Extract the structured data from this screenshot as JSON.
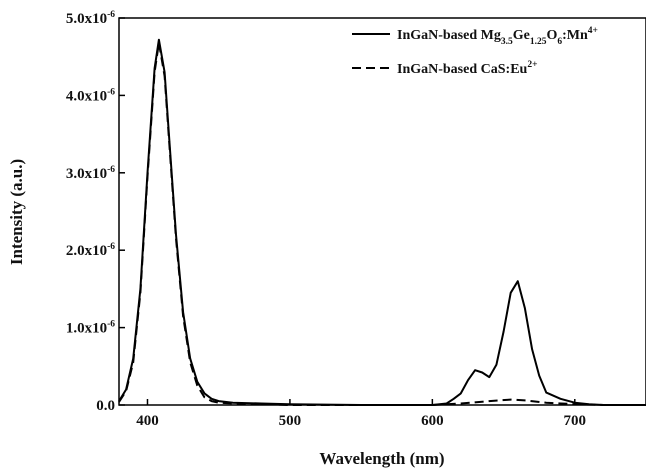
{
  "chart_data": {
    "type": "line",
    "xlabel": "Wavelength (nm)",
    "ylabel": "Intensity (a.u.)",
    "xlim": [
      380,
      750
    ],
    "ylim": [
      0,
      5e-06
    ],
    "x_ticks": [
      400,
      500,
      600,
      700
    ],
    "x_tick_labels": [
      "400",
      "500",
      "600",
      "700"
    ],
    "y_ticks": [
      0,
      1e-06,
      2e-06,
      3e-06,
      4e-06,
      5e-06
    ],
    "y_tick_labels": [
      {
        "base": "0.0",
        "exp": ""
      },
      {
        "base": "1.0x10",
        "exp": "-6"
      },
      {
        "base": "2.0x10",
        "exp": "-6"
      },
      {
        "base": "3.0x10",
        "exp": "-6"
      },
      {
        "base": "4.0x10",
        "exp": "-6"
      },
      {
        "base": "5.0x10",
        "exp": "-6"
      }
    ],
    "grid": false,
    "legend_position": "top-right",
    "series": [
      {
        "name": "InGaN-based Mg3.5Ge1.25O6:Mn4+",
        "name_parts": [
          {
            "t": "InGaN-based Mg",
            "s": ""
          },
          {
            "t": "3.5",
            "s": "sub"
          },
          {
            "t": "Ge",
            "s": ""
          },
          {
            "t": "1.25",
            "s": "sub"
          },
          {
            "t": "O",
            "s": ""
          },
          {
            "t": "6",
            "s": "sub"
          },
          {
            "t": ":Mn",
            "s": ""
          },
          {
            "t": "4+",
            "s": "sup"
          }
        ],
        "line_style": "solid",
        "color": "#000000",
        "x": [
          380,
          385,
          390,
          395,
          400,
          405,
          408,
          412,
          415,
          420,
          425,
          430,
          435,
          440,
          445,
          450,
          460,
          480,
          500,
          550,
          600,
          610,
          615,
          620,
          625,
          630,
          635,
          640,
          645,
          650,
          655,
          660,
          665,
          670,
          675,
          680,
          690,
          700,
          710,
          720,
          750
        ],
        "y": [
          5e-08,
          2e-07,
          6e-07,
          1.5e-06,
          3e-06,
          4.35e-06,
          4.72e-06,
          4.3e-06,
          3.5e-06,
          2.2e-06,
          1.2e-06,
          6e-07,
          3e-07,
          1.5e-07,
          8e-08,
          5e-08,
          3e-08,
          2e-08,
          1e-08,
          0.0,
          0.0,
          2e-08,
          8e-08,
          1.5e-07,
          3.2e-07,
          4.5e-07,
          4.2e-07,
          3.6e-07,
          5.2e-07,
          9.5e-07,
          1.45e-06,
          1.6e-06,
          1.25e-06,
          7.2e-07,
          3.8e-07,
          1.6e-07,
          8e-08,
          3e-08,
          1e-08,
          0.0,
          0.0
        ]
      },
      {
        "name": "InGaN-based CaS:Eu2+",
        "name_parts": [
          {
            "t": "InGaN-based CaS:Eu",
            "s": ""
          },
          {
            "t": "2+",
            "s": "sup"
          }
        ],
        "line_style": "dashed",
        "color": "#000000",
        "x": [
          380,
          385,
          390,
          395,
          400,
          405,
          408,
          412,
          415,
          420,
          425,
          430,
          435,
          440,
          445,
          450,
          460,
          480,
          500,
          550,
          600,
          620,
          640,
          655,
          665,
          680,
          700,
          720,
          750
        ],
        "y": [
          4e-08,
          1.8e-07,
          5.5e-07,
          1.45e-06,
          2.95e-06,
          4.3e-06,
          4.68e-06,
          4.25e-06,
          3.45e-06,
          2.15e-06,
          1.15e-06,
          5.5e-07,
          2.5e-07,
          1e-07,
          5e-08,
          3e-08,
          2e-08,
          1e-08,
          0.0,
          0.0,
          0.0,
          2e-08,
          5e-08,
          7e-08,
          6e-08,
          3e-08,
          1e-08,
          0.0,
          0.0
        ]
      }
    ]
  }
}
